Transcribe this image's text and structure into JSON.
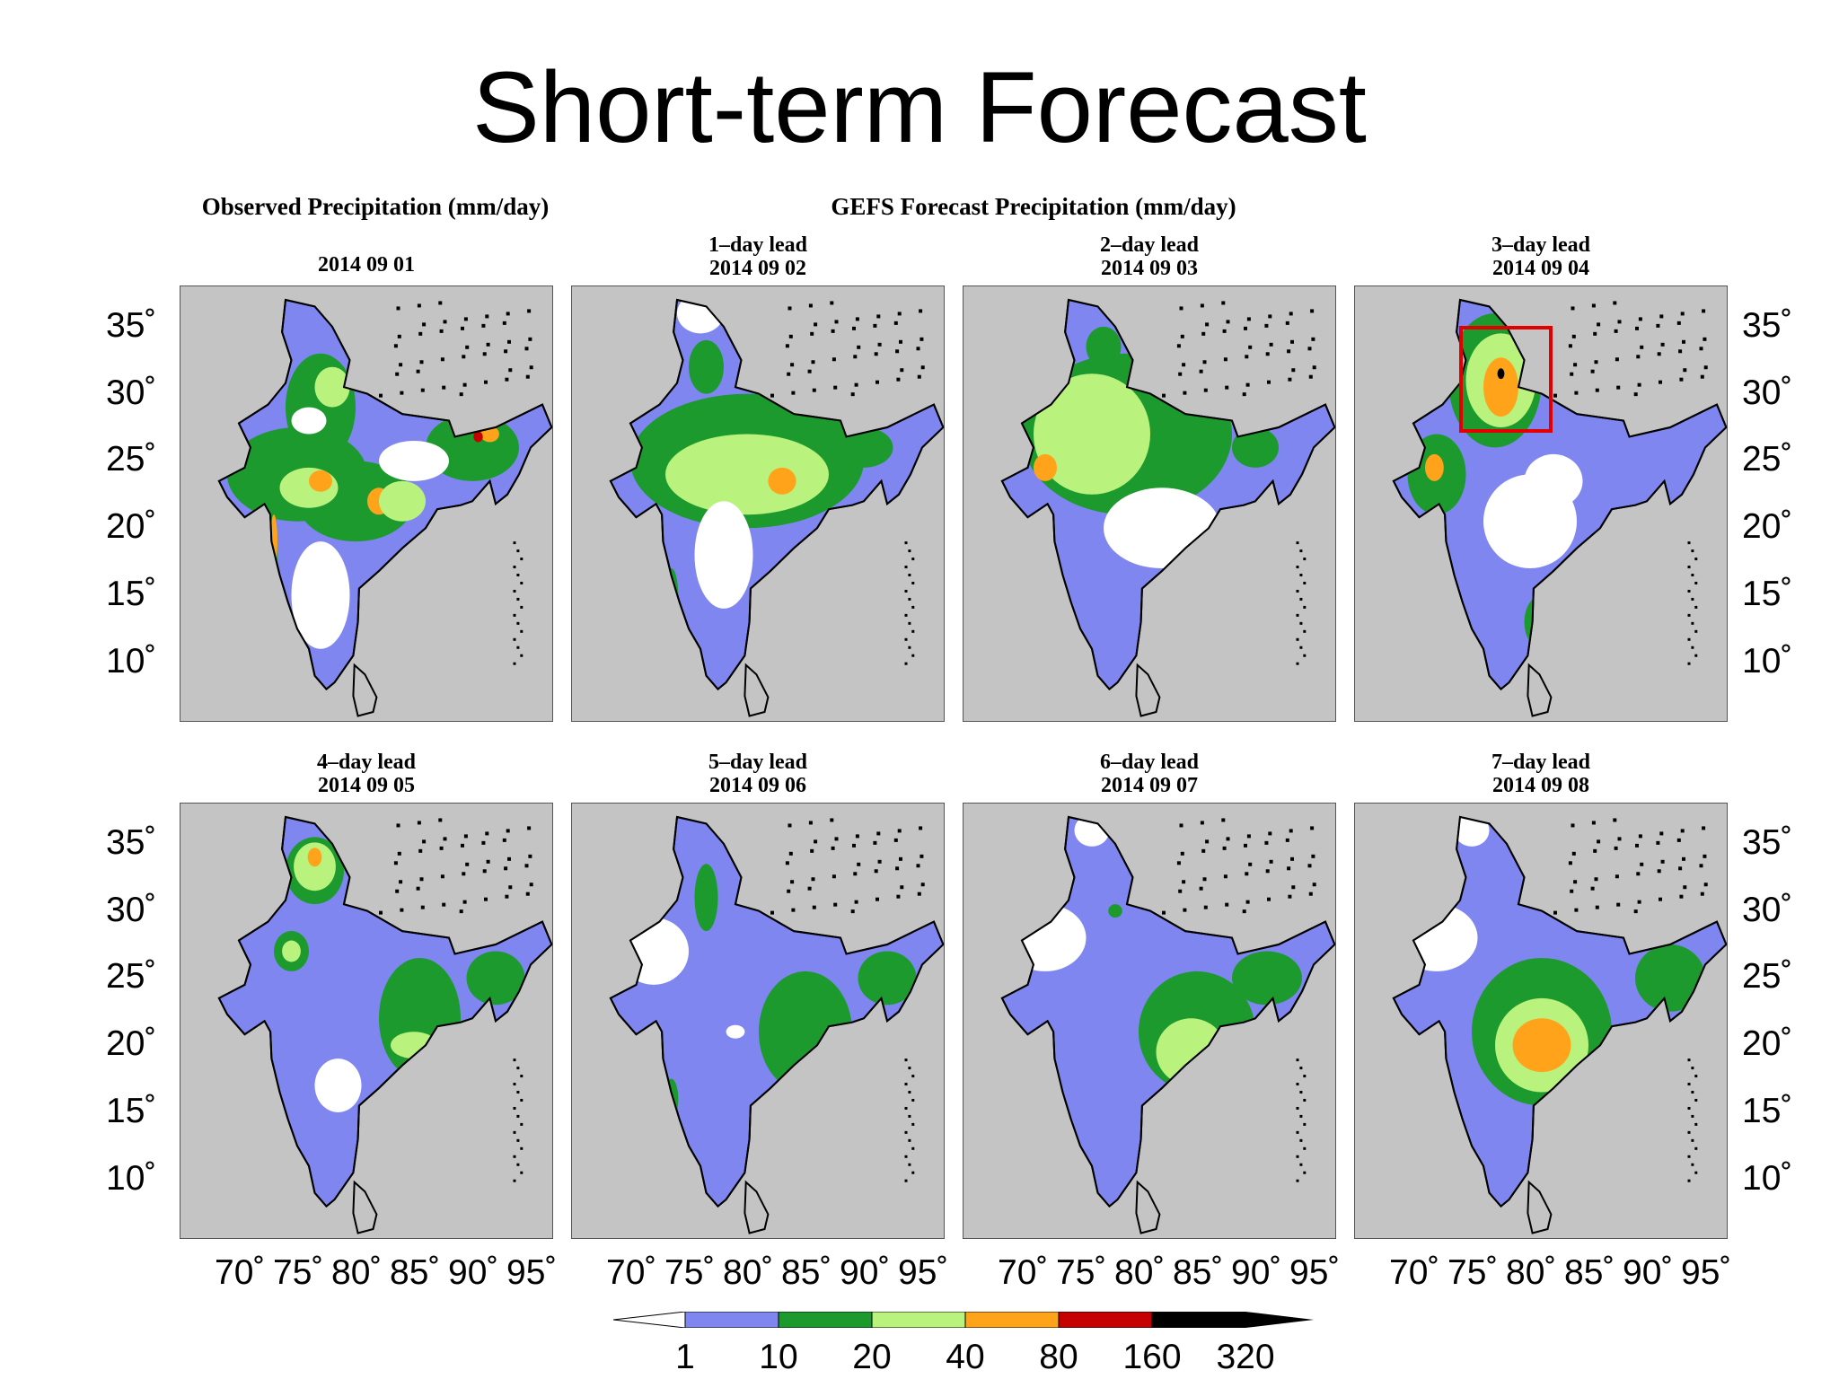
{
  "title": "Short-term Forecast",
  "header_observed": "Observed Precipitation (mm/day)",
  "header_forecast": "GEFS Forecast Precipitation (mm/day)",
  "colors": {
    "background_land": "#7f86f0",
    "map_bg": "#c4c4c4",
    "white": "#ffffff",
    "green_dark": "#1c9a2e",
    "green_light": "#b9f27c",
    "orange": "#ffa41a",
    "red": "#c40000",
    "black": "#000000",
    "highlight_box": "#e00000"
  },
  "chart_data": {
    "type": "heatmap",
    "units": "mm/day",
    "x_axis": {
      "ticks": [
        "70˚",
        "75˚",
        "80˚",
        "85˚",
        "90˚",
        "95˚"
      ],
      "values": [
        70,
        75,
        80,
        85,
        90,
        95
      ]
    },
    "y_axis": {
      "ticks": [
        "35˚",
        "30˚",
        "25˚",
        "20˚",
        "15˚",
        "10˚"
      ],
      "values": [
        35,
        30,
        25,
        20,
        15,
        10
      ]
    },
    "colorbar": {
      "levels": [
        "1",
        "10",
        "20",
        "40",
        "80",
        "160",
        "320"
      ],
      "colors": [
        "#7f86f0",
        "#1c9a2e",
        "#b9f27c",
        "#ffa41a",
        "#c40000",
        "#000000"
      ]
    },
    "panels": [
      {
        "id": "observed",
        "lead": "",
        "date": "2014 09 01",
        "highlight": false
      },
      {
        "id": "lead1",
        "lead": "1–day lead",
        "date": "2014 09 02",
        "highlight": false
      },
      {
        "id": "lead2",
        "lead": "2–day lead",
        "date": "2014 09 03",
        "highlight": false
      },
      {
        "id": "lead3",
        "lead": "3–day lead",
        "date": "2014 09 04",
        "highlight": true
      },
      {
        "id": "lead4",
        "lead": "4–day lead",
        "date": "2014 09 05",
        "highlight": false
      },
      {
        "id": "lead5",
        "lead": "5–day lead",
        "date": "2014 09 06",
        "highlight": false
      },
      {
        "id": "lead6",
        "lead": "6–day lead",
        "date": "2014 09 07",
        "highlight": false
      },
      {
        "id": "lead7",
        "lead": "7–day lead",
        "date": "2014 09 08",
        "highlight": false
      }
    ]
  }
}
